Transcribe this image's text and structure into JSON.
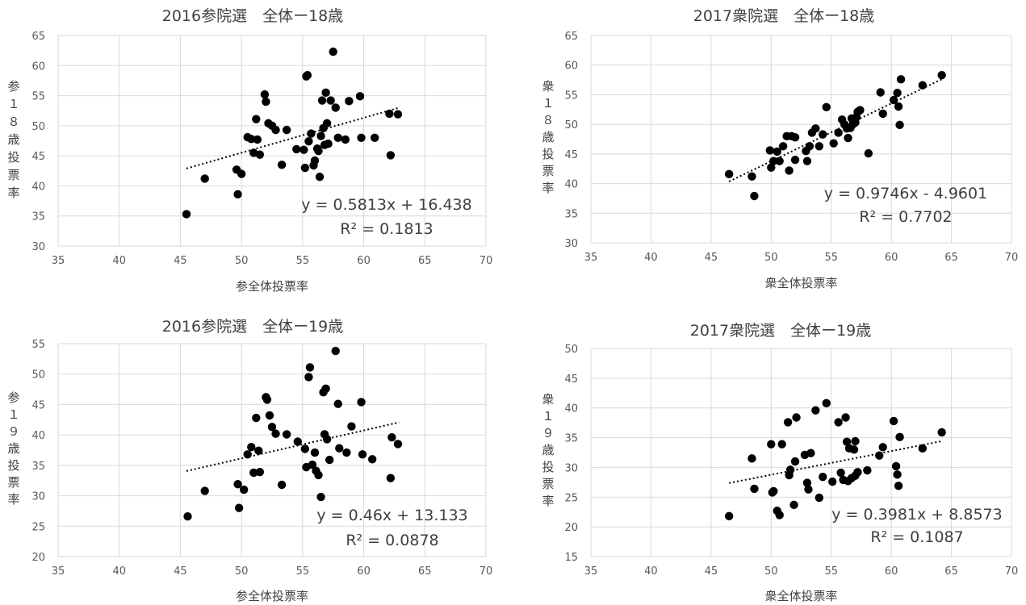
{
  "chart_data": [
    {
      "type": "scatter",
      "title": "2016参院選　全体ー18歳",
      "xlabel": "参全体投票率",
      "ylabel": "参１８歳投票率",
      "xlim": [
        35,
        70
      ],
      "ylim": [
        30,
        65
      ],
      "xticks": [
        "35",
        "40",
        "45",
        "50",
        "55",
        "60",
        "65",
        "70"
      ],
      "yticks": [
        "30",
        "35",
        "40",
        "45",
        "50",
        "55",
        "60",
        "65"
      ],
      "grid": true,
      "trendline": {
        "slope": 0.5813,
        "intercept": 16.438,
        "x_range": [
          45.5,
          62.9
        ]
      },
      "equation": "y = 0.5813x + 16.438",
      "r2": "R² = 0.1813",
      "points": [
        [
          45.5,
          35.3
        ],
        [
          47.0,
          41.2
        ],
        [
          49.6,
          42.7
        ],
        [
          49.7,
          38.6
        ],
        [
          50.0,
          42.0
        ],
        [
          50.5,
          48.1
        ],
        [
          50.8,
          47.8
        ],
        [
          51.0,
          45.5
        ],
        [
          51.2,
          51.1
        ],
        [
          51.3,
          47.7
        ],
        [
          51.5,
          45.2
        ],
        [
          51.9,
          55.2
        ],
        [
          52.0,
          54.0
        ],
        [
          52.2,
          50.4
        ],
        [
          52.5,
          50.0
        ],
        [
          52.8,
          49.3
        ],
        [
          53.3,
          43.5
        ],
        [
          53.7,
          49.3
        ],
        [
          54.5,
          46.1
        ],
        [
          55.1,
          46.0
        ],
        [
          55.2,
          43.0
        ],
        [
          55.3,
          58.2
        ],
        [
          55.4,
          58.4
        ],
        [
          55.5,
          47.4
        ],
        [
          55.7,
          48.7
        ],
        [
          55.9,
          43.4
        ],
        [
          56.0,
          44.2
        ],
        [
          56.2,
          46.2
        ],
        [
          56.3,
          45.8
        ],
        [
          56.4,
          41.5
        ],
        [
          56.5,
          48.3
        ],
        [
          56.6,
          54.2
        ],
        [
          56.7,
          49.6
        ],
        [
          56.8,
          46.8
        ],
        [
          56.9,
          55.5
        ],
        [
          57.0,
          50.4
        ],
        [
          57.1,
          47.0
        ],
        [
          57.3,
          54.2
        ],
        [
          57.5,
          62.3
        ],
        [
          57.7,
          53.0
        ],
        [
          57.9,
          48.0
        ],
        [
          58.5,
          47.7
        ],
        [
          58.8,
          54.1
        ],
        [
          59.7,
          54.9
        ],
        [
          59.8,
          48.0
        ],
        [
          60.9,
          48.0
        ],
        [
          62.1,
          52.0
        ],
        [
          62.2,
          45.1
        ],
        [
          62.8,
          51.9
        ]
      ]
    },
    {
      "type": "scatter",
      "title": "2017衆院選　全体ー18歳",
      "xlabel": "衆全体投票率",
      "ylabel": "衆１８歳投票率",
      "xlim": [
        35,
        70
      ],
      "ylim": [
        30,
        65
      ],
      "xticks": [
        "35",
        "40",
        "45",
        "50",
        "55",
        "60",
        "65",
        "70"
      ],
      "yticks": [
        "30",
        "35",
        "40",
        "45",
        "50",
        "55",
        "60",
        "65"
      ],
      "grid": true,
      "trendline": {
        "slope": 0.9746,
        "intercept": -4.9601,
        "x_range": [
          46.5,
          64.2
        ]
      },
      "equation": "y = 0.9746x - 4.9601",
      "r2": "R² = 0.7702",
      "points": [
        [
          46.5,
          41.6
        ],
        [
          48.4,
          41.2
        ],
        [
          48.6,
          37.9
        ],
        [
          49.9,
          45.6
        ],
        [
          50.0,
          42.7
        ],
        [
          50.2,
          43.8
        ],
        [
          50.5,
          45.4
        ],
        [
          50.7,
          43.8
        ],
        [
          51.0,
          46.3
        ],
        [
          51.3,
          48.0
        ],
        [
          51.5,
          42.2
        ],
        [
          51.7,
          48.0
        ],
        [
          52.0,
          47.8
        ],
        [
          52.0,
          44.0
        ],
        [
          52.9,
          45.5
        ],
        [
          53.0,
          43.8
        ],
        [
          53.2,
          46.3
        ],
        [
          53.4,
          48.6
        ],
        [
          53.7,
          49.3
        ],
        [
          54.0,
          46.3
        ],
        [
          54.3,
          48.3
        ],
        [
          54.6,
          52.9
        ],
        [
          55.2,
          46.8
        ],
        [
          55.6,
          48.6
        ],
        [
          55.9,
          50.8
        ],
        [
          56.1,
          50.0
        ],
        [
          56.3,
          49.3
        ],
        [
          56.4,
          47.7
        ],
        [
          56.6,
          49.4
        ],
        [
          56.7,
          51.0
        ],
        [
          56.8,
          50.0
        ],
        [
          57.0,
          50.3
        ],
        [
          57.1,
          51.2
        ],
        [
          57.2,
          52.1
        ],
        [
          57.4,
          52.4
        ],
        [
          58.1,
          45.1
        ],
        [
          59.1,
          55.4
        ],
        [
          59.3,
          51.8
        ],
        [
          60.2,
          54.1
        ],
        [
          60.5,
          55.3
        ],
        [
          60.6,
          53.0
        ],
        [
          60.7,
          49.9
        ],
        [
          60.8,
          57.6
        ],
        [
          62.6,
          56.6
        ],
        [
          64.2,
          58.3
        ]
      ]
    },
    {
      "type": "scatter",
      "title": "2016参院選　全体ー19歳",
      "xlabel": "参全体投票率",
      "ylabel": "参１９歳投票率",
      "xlim": [
        35,
        70
      ],
      "ylim": [
        20,
        55
      ],
      "xticks": [
        "35",
        "40",
        "45",
        "50",
        "55",
        "60",
        "65",
        "70"
      ],
      "yticks": [
        "20",
        "25",
        "30",
        "35",
        "40",
        "45",
        "50",
        "55"
      ],
      "grid": true,
      "trendline": {
        "slope": 0.46,
        "intercept": 13.133,
        "x_range": [
          45.5,
          62.9
        ]
      },
      "equation": "y = 0.46x + 13.133",
      "r2": "R² = 0.0878",
      "points": [
        [
          45.6,
          26.6
        ],
        [
          47.0,
          30.8
        ],
        [
          49.7,
          31.9
        ],
        [
          49.8,
          28.0
        ],
        [
          50.2,
          31.0
        ],
        [
          50.5,
          36.8
        ],
        [
          50.8,
          38.0
        ],
        [
          51.0,
          33.8
        ],
        [
          51.2,
          42.8
        ],
        [
          51.4,
          37.4
        ],
        [
          51.5,
          33.9
        ],
        [
          52.0,
          46.2
        ],
        [
          52.1,
          45.8
        ],
        [
          52.3,
          43.2
        ],
        [
          52.5,
          41.3
        ],
        [
          52.8,
          40.2
        ],
        [
          53.3,
          31.8
        ],
        [
          53.7,
          40.1
        ],
        [
          54.6,
          38.9
        ],
        [
          55.2,
          37.7
        ],
        [
          55.3,
          34.7
        ],
        [
          55.5,
          49.5
        ],
        [
          55.6,
          51.1
        ],
        [
          55.8,
          35.1
        ],
        [
          56.0,
          37.1
        ],
        [
          56.1,
          34.1
        ],
        [
          56.3,
          33.4
        ],
        [
          56.5,
          29.8
        ],
        [
          56.7,
          47.0
        ],
        [
          56.8,
          40.1
        ],
        [
          56.9,
          47.6
        ],
        [
          57.0,
          39.3
        ],
        [
          57.2,
          35.9
        ],
        [
          57.7,
          53.8
        ],
        [
          57.9,
          45.1
        ],
        [
          58.0,
          37.8
        ],
        [
          58.6,
          37.1
        ],
        [
          59.0,
          41.4
        ],
        [
          59.8,
          45.4
        ],
        [
          59.9,
          36.8
        ],
        [
          60.7,
          36.0
        ],
        [
          62.2,
          32.9
        ],
        [
          62.3,
          39.6
        ],
        [
          62.8,
          38.5
        ]
      ]
    },
    {
      "type": "scatter",
      "title": "2017衆院選　全体ー19歳",
      "xlabel": "衆全体投票率",
      "ylabel": "衆１９歳投票率",
      "xlim": [
        35,
        70
      ],
      "ylim": [
        15,
        50
      ],
      "xticks": [
        "35",
        "40",
        "45",
        "50",
        "55",
        "60",
        "65",
        "70"
      ],
      "yticks": [
        "15",
        "20",
        "25",
        "30",
        "35",
        "40",
        "45",
        "50"
      ],
      "grid": true,
      "trendline": {
        "slope": 0.3981,
        "intercept": 8.8573,
        "x_range": [
          46.5,
          64.2
        ]
      },
      "equation": "y = 0.3981x + 8.8573",
      "r2": "R² = 0.1087",
      "points": [
        [
          46.5,
          21.8
        ],
        [
          48.4,
          31.5
        ],
        [
          48.6,
          26.4
        ],
        [
          50.0,
          33.9
        ],
        [
          50.1,
          25.8
        ],
        [
          50.2,
          26.0
        ],
        [
          50.5,
          22.7
        ],
        [
          50.7,
          22.0
        ],
        [
          50.9,
          33.9
        ],
        [
          51.4,
          37.6
        ],
        [
          51.5,
          28.7
        ],
        [
          51.6,
          29.6
        ],
        [
          51.9,
          23.7
        ],
        [
          52.0,
          31.0
        ],
        [
          52.1,
          38.4
        ],
        [
          52.8,
          32.1
        ],
        [
          53.0,
          27.4
        ],
        [
          53.1,
          26.3
        ],
        [
          53.3,
          32.4
        ],
        [
          53.7,
          39.6
        ],
        [
          54.0,
          24.9
        ],
        [
          54.3,
          28.4
        ],
        [
          54.6,
          40.8
        ],
        [
          55.1,
          27.6
        ],
        [
          55.6,
          37.6
        ],
        [
          55.8,
          29.1
        ],
        [
          56.0,
          27.9
        ],
        [
          56.2,
          38.4
        ],
        [
          56.3,
          34.3
        ],
        [
          56.4,
          27.7
        ],
        [
          56.5,
          33.2
        ],
        [
          56.7,
          28.2
        ],
        [
          56.9,
          33.0
        ],
        [
          57.0,
          28.6
        ],
        [
          57.0,
          34.4
        ],
        [
          57.2,
          29.2
        ],
        [
          58.0,
          29.5
        ],
        [
          59.0,
          32.0
        ],
        [
          59.3,
          33.4
        ],
        [
          60.2,
          37.8
        ],
        [
          60.4,
          30.2
        ],
        [
          60.5,
          28.8
        ],
        [
          60.6,
          26.9
        ],
        [
          60.7,
          35.1
        ],
        [
          62.6,
          33.2
        ],
        [
          64.2,
          35.9
        ]
      ]
    }
  ]
}
